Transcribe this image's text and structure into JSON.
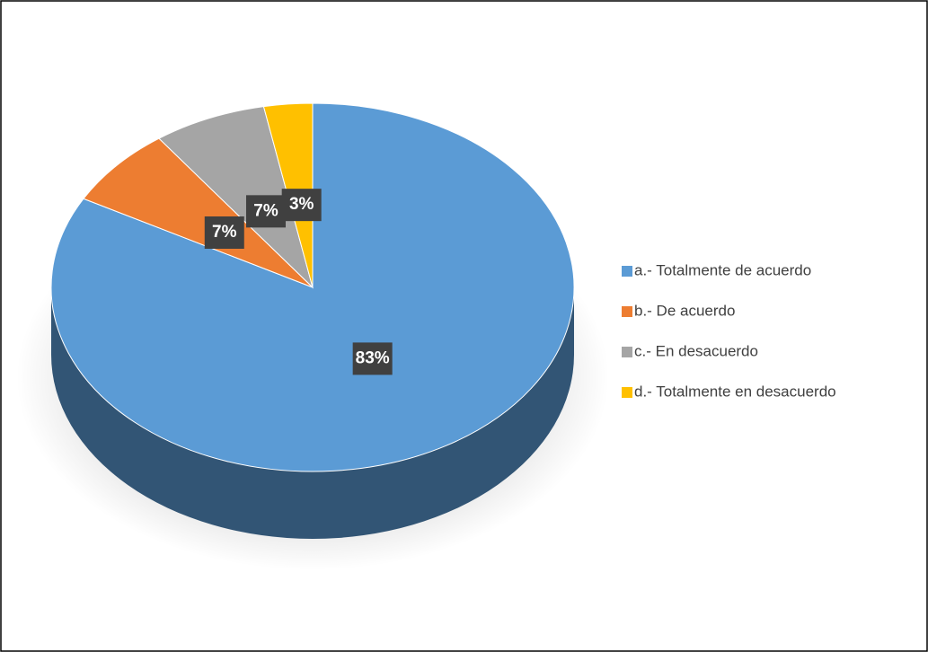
{
  "chart_data": {
    "type": "pie",
    "categories": [
      "a.- Totalmente de acuerdo",
      "b.- De acuerdo",
      "c.- En desacuerdo",
      "d.-  Totalmente en desacuerdo"
    ],
    "values": [
      83,
      7,
      7,
      3
    ],
    "value_labels": [
      "83%",
      "7%",
      "7%",
      "3%"
    ],
    "colors": [
      "#5b9bd5",
      "#ed7d31",
      "#a5a5a5",
      "#ffc000"
    ],
    "legend": "right"
  }
}
